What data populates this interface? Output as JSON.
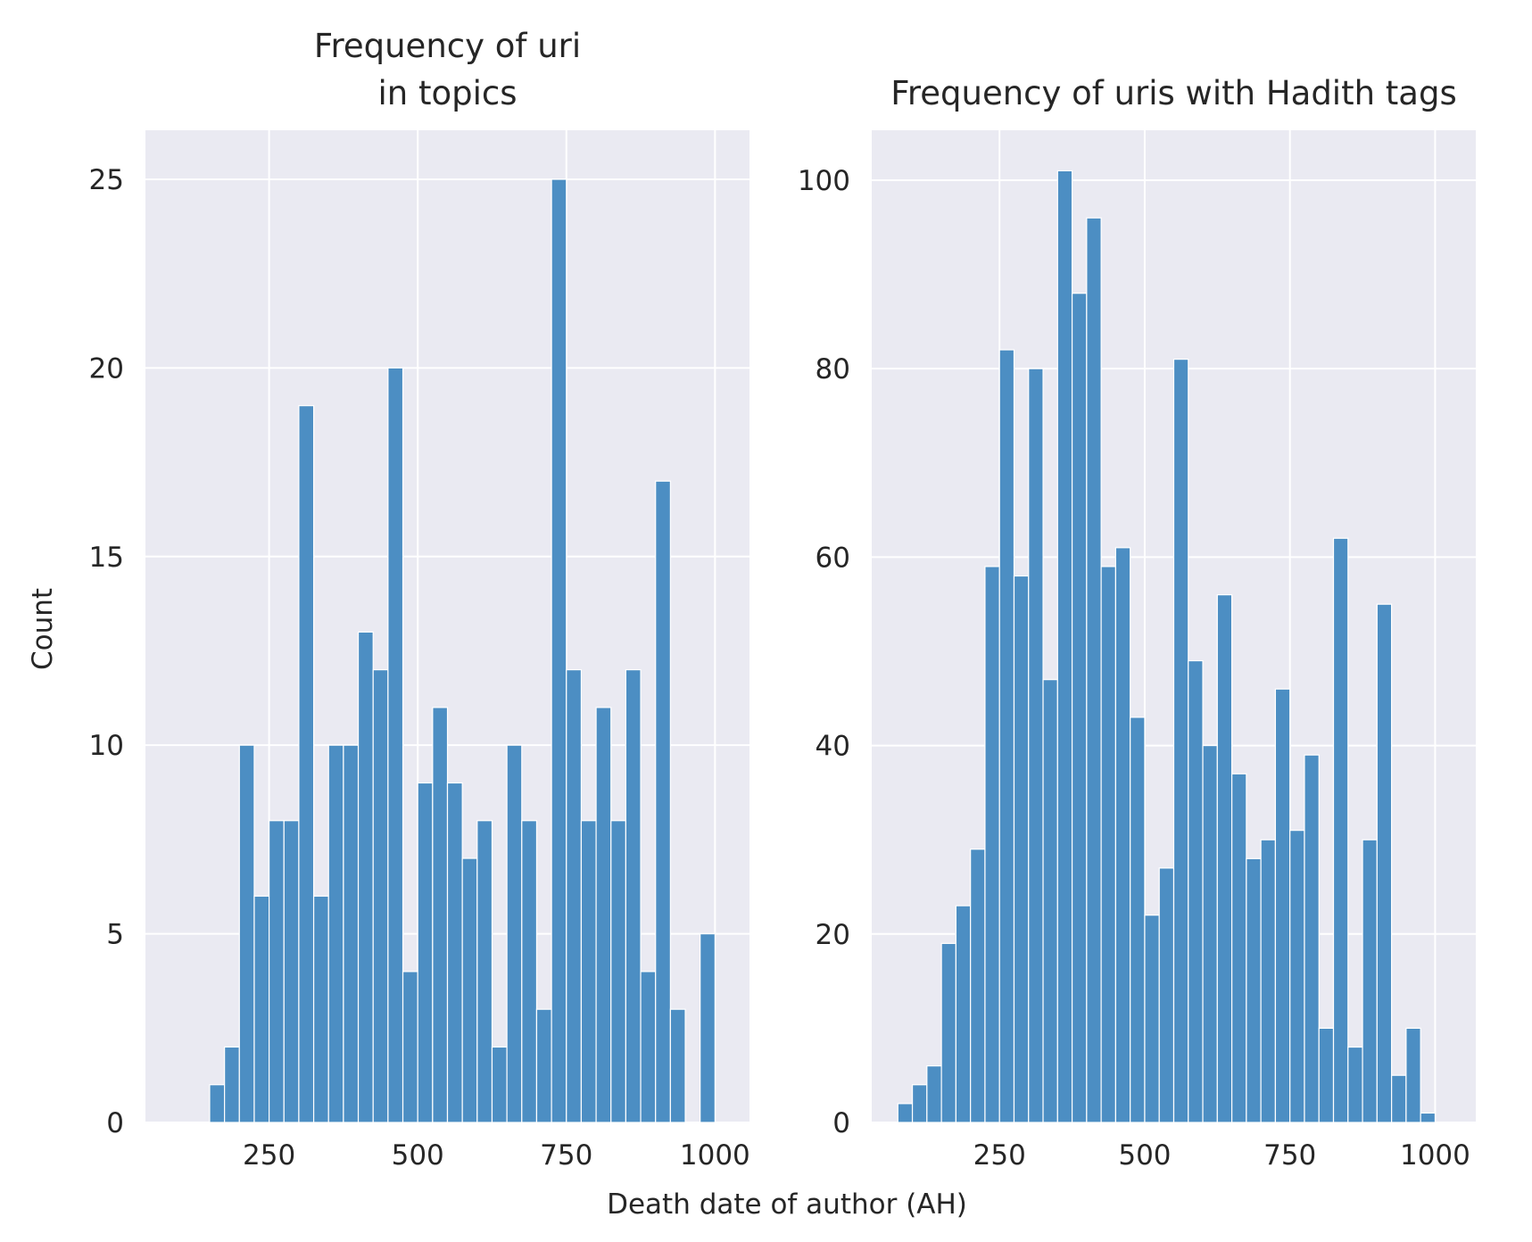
{
  "figure": {
    "xlabel": "Death date of author (AH)",
    "ylabel": "Count",
    "bar_color": "#4c8ec3",
    "background_color": "#eaeaf2",
    "grid_color": "#ffffff"
  },
  "chart_data": [
    {
      "type": "bar",
      "title_lines": [
        "Frequency of uri",
        "in topics"
      ],
      "xlabel": "",
      "ylabel": "Count",
      "xlim": [
        42,
        1058
      ],
      "ylim": [
        0,
        26.3
      ],
      "xticks": [
        250,
        500,
        750,
        1000
      ],
      "xtick_labels": [
        "250",
        "500",
        "750",
        "1000"
      ],
      "yticks": [
        0,
        5,
        10,
        15,
        20,
        25
      ],
      "ytick_labels": [
        "0",
        "5",
        "10",
        "15",
        "20",
        "25"
      ],
      "bin_width": 25,
      "bin_starts": [
        150,
        175,
        200,
        225,
        250,
        275,
        300,
        325,
        350,
        375,
        400,
        425,
        450,
        475,
        500,
        525,
        550,
        575,
        600,
        625,
        650,
        675,
        700,
        725,
        750,
        775,
        800,
        825,
        850,
        875,
        900,
        925,
        950,
        975
      ],
      "values": [
        1,
        2,
        10,
        6,
        8,
        8,
        19,
        6,
        10,
        10,
        13,
        12,
        20,
        4,
        9,
        11,
        9,
        7,
        8,
        2,
        10,
        8,
        3,
        25,
        12,
        8,
        11,
        8,
        12,
        4,
        17,
        3,
        0,
        5
      ]
    },
    {
      "type": "bar",
      "title_lines": [
        "Frequency of uris with Hadith tags"
      ],
      "xlabel": "",
      "ylabel": "",
      "xlim": [
        30,
        1070
      ],
      "ylim": [
        0,
        105.3
      ],
      "xticks": [
        250,
        500,
        750,
        1000
      ],
      "xtick_labels": [
        "250",
        "500",
        "750",
        "1000"
      ],
      "yticks": [
        0,
        20,
        40,
        60,
        80,
        100
      ],
      "ytick_labels": [
        "0",
        "20",
        "40",
        "60",
        "80",
        "100"
      ],
      "bin_width": 25,
      "bin_starts": [
        75,
        100,
        125,
        150,
        175,
        200,
        225,
        250,
        275,
        300,
        325,
        350,
        375,
        400,
        425,
        450,
        475,
        500,
        525,
        550,
        575,
        600,
        625,
        650,
        675,
        700,
        725,
        750,
        775,
        800,
        825,
        850,
        875,
        900,
        925,
        950,
        975,
        1000
      ],
      "values": [
        2,
        4,
        6,
        19,
        23,
        29,
        59,
        82,
        58,
        80,
        47,
        101,
        88,
        96,
        59,
        61,
        43,
        22,
        27,
        81,
        49,
        40,
        56,
        37,
        28,
        30,
        46,
        31,
        39,
        10,
        62,
        8,
        30,
        55,
        5,
        10,
        1,
        0
      ]
    }
  ]
}
